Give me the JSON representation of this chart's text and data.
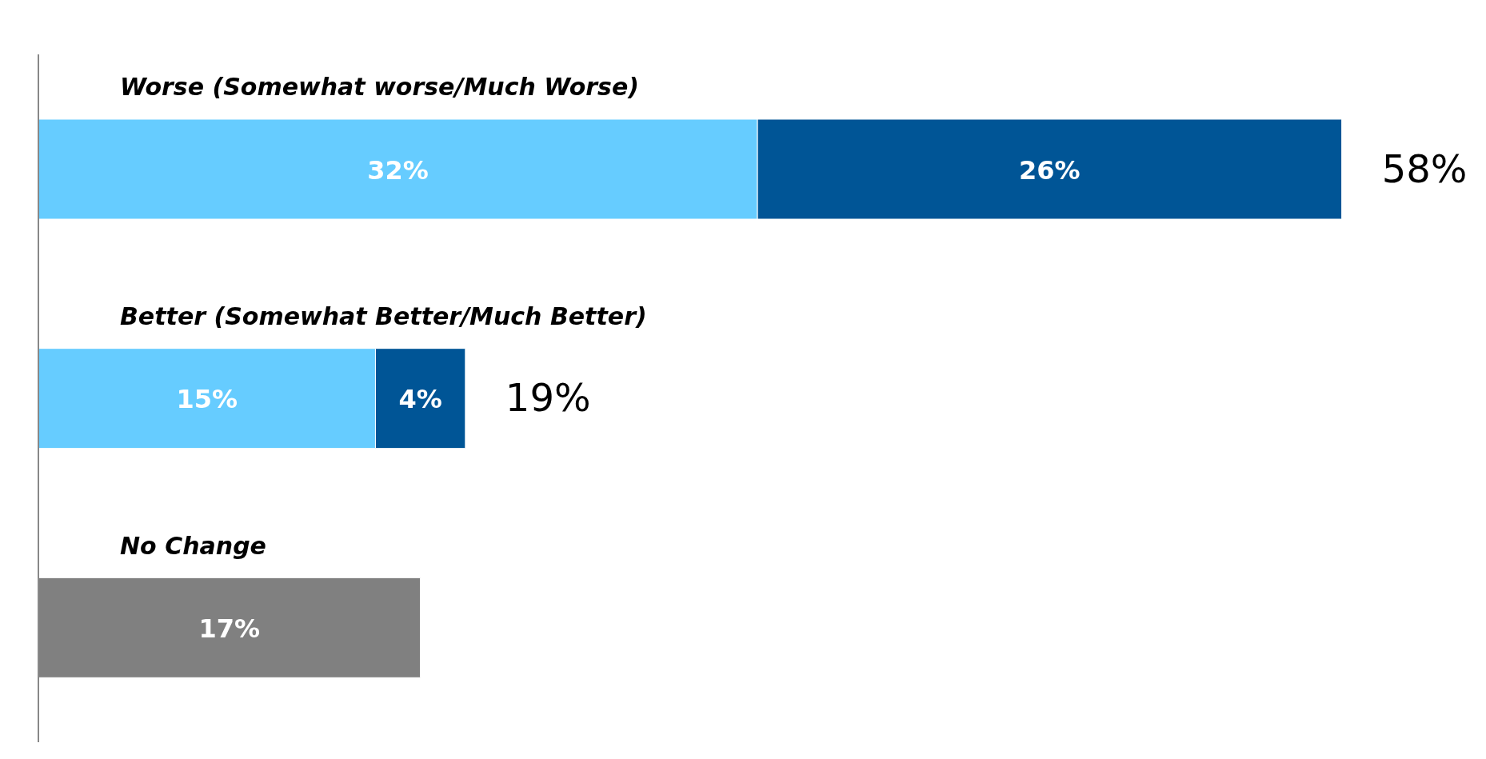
{
  "chart_data": {
    "type": "bar",
    "orientation": "horizontal",
    "stacked": true,
    "categories": [
      "Worse (Somewhat worse/Much Worse)",
      "Better (Somewhat Better/Much Better)",
      "No Change"
    ],
    "series": [
      {
        "color": "#66ccff",
        "values": [
          32,
          15,
          null
        ],
        "value_labels": [
          "32%",
          "15%",
          null
        ]
      },
      {
        "color": "#005596",
        "values": [
          26,
          4,
          null
        ],
        "value_labels": [
          "26%",
          "4%",
          null
        ]
      },
      {
        "color": "#808080",
        "values": [
          null,
          null,
          17
        ],
        "value_labels": [
          null,
          null,
          "17%"
        ]
      }
    ],
    "totals": [
      "58%",
      "19%",
      null
    ],
    "tick_labels": "y",
    "grid": false,
    "legend": false
  }
}
